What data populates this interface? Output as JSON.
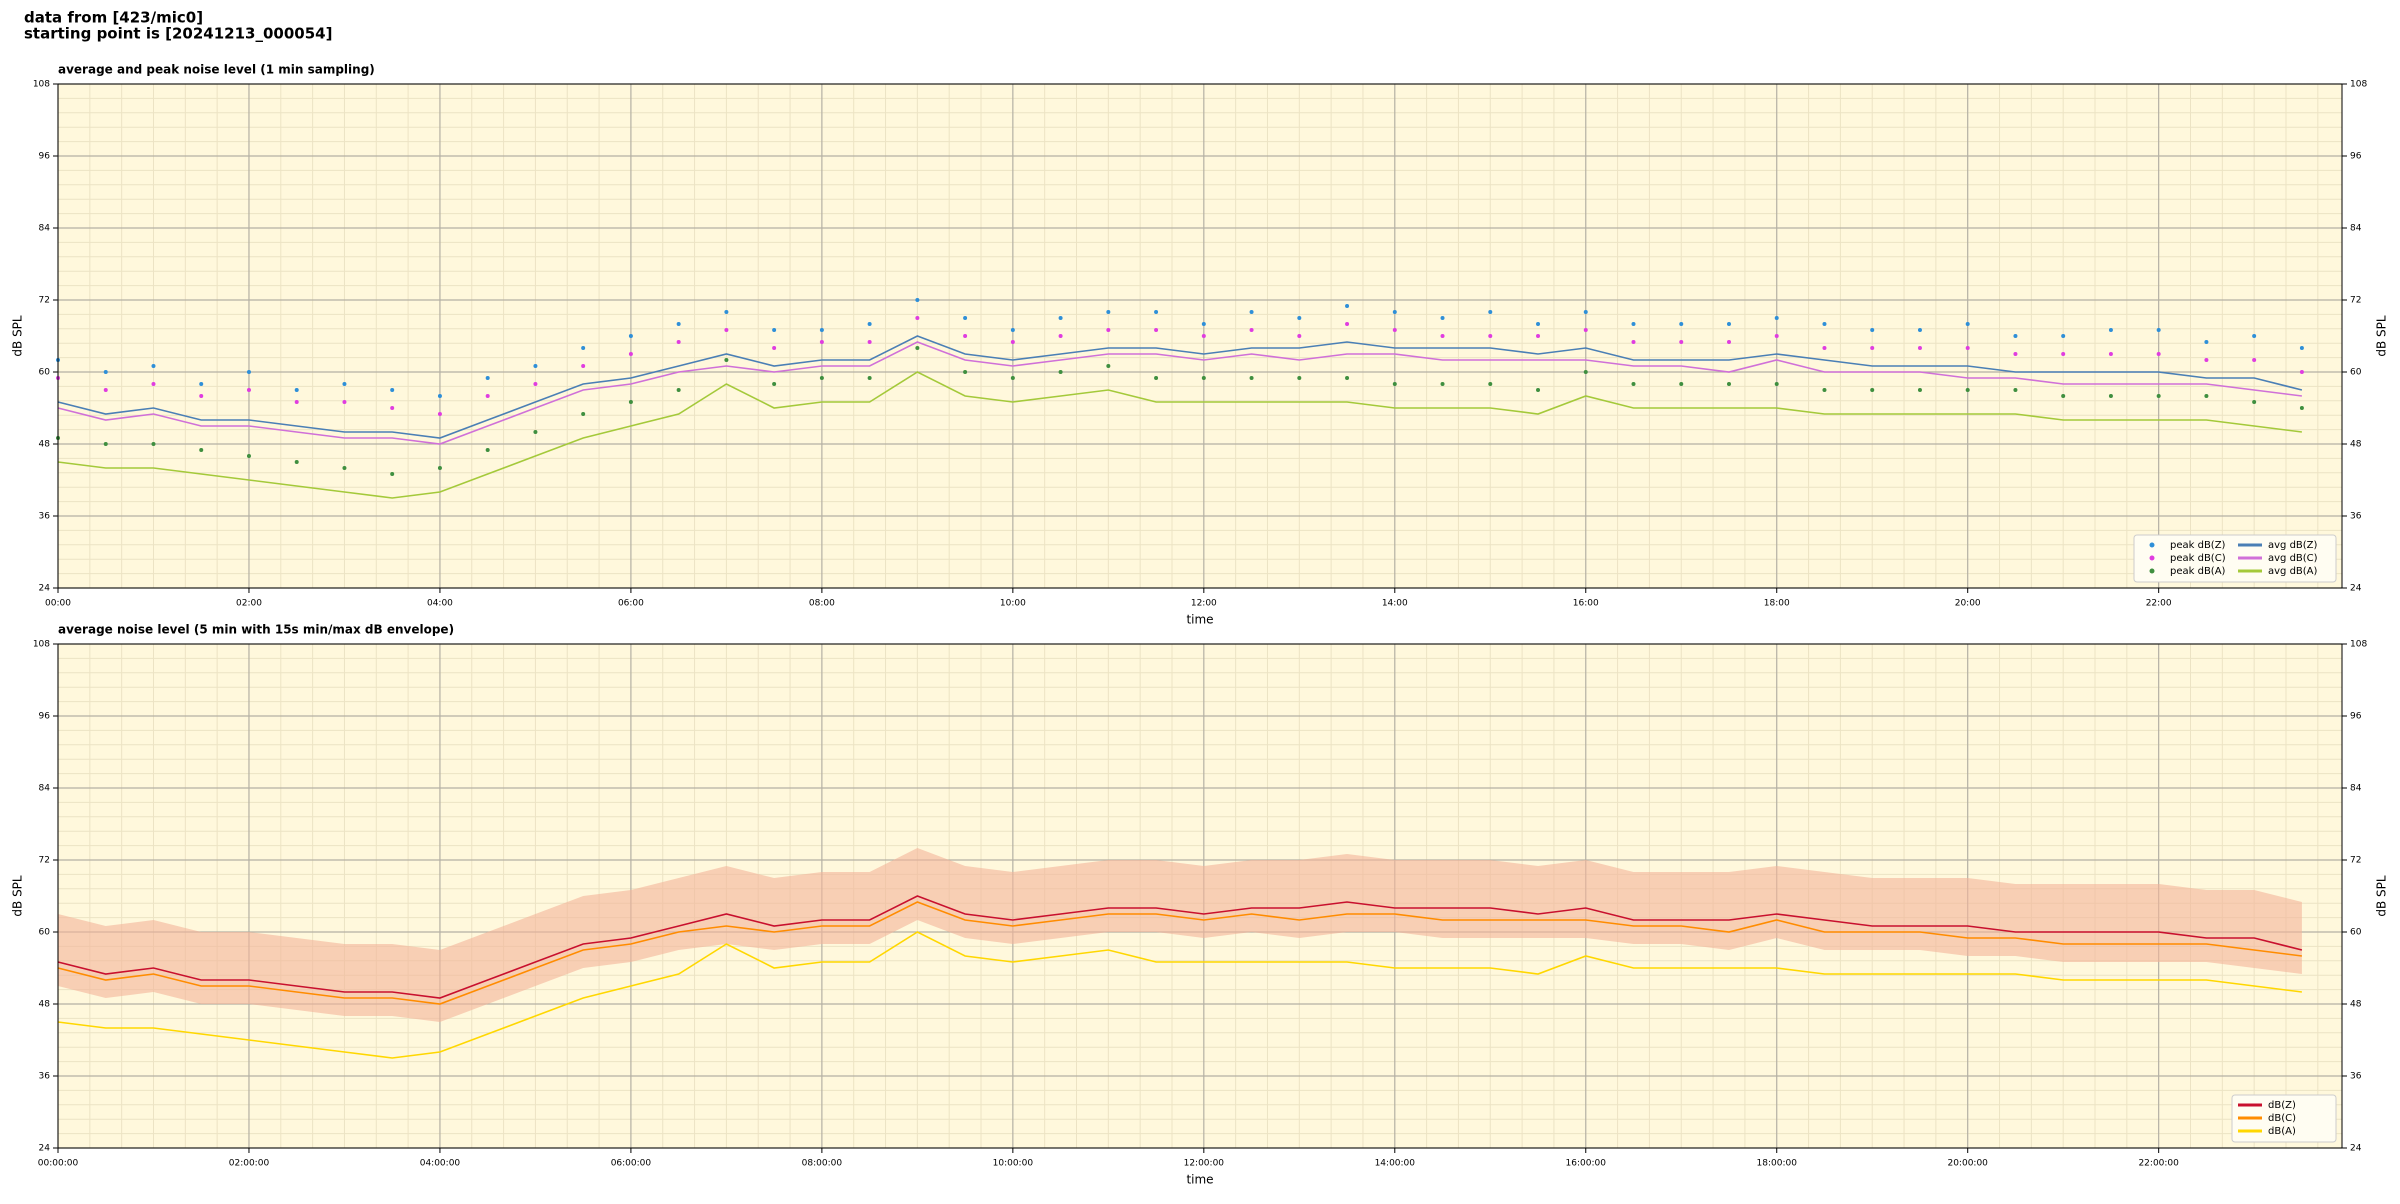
{
  "header": {
    "line1": "data from [423/mic0]",
    "line2": "starting point is [20241213_000054]"
  },
  "chart_data": [
    {
      "type": "line",
      "title": "average and peak noise level (1 min sampling)",
      "x_label": "time",
      "y_label": "dB SPL",
      "y2_label": "dB SPL",
      "x": [
        0,
        0.5,
        1,
        1.5,
        2,
        2.5,
        3,
        3.5,
        4,
        4.5,
        5,
        5.5,
        6,
        6.5,
        7,
        7.5,
        8,
        8.5,
        9,
        9.5,
        10,
        10.5,
        11,
        11.5,
        12,
        12.5,
        13,
        13.5,
        14,
        14.5,
        15,
        15.5,
        16,
        16.5,
        17,
        17.5,
        18,
        18.5,
        19,
        19.5,
        20,
        20.5,
        21,
        21.5,
        22,
        22.5,
        23,
        23.5
      ],
      "xlim": [
        0,
        23.92
      ],
      "xticks": [
        {
          "value": 0,
          "label": "00:00"
        },
        {
          "value": 2,
          "label": "02:00"
        },
        {
          "value": 4,
          "label": "04:00"
        },
        {
          "value": 6,
          "label": "06:00"
        },
        {
          "value": 8,
          "label": "08:00"
        },
        {
          "value": 10,
          "label": "10:00"
        },
        {
          "value": 12,
          "label": "12:00"
        },
        {
          "value": 14,
          "label": "14:00"
        },
        {
          "value": 16,
          "label": "16:00"
        },
        {
          "value": 18,
          "label": "18:00"
        },
        {
          "value": 20,
          "label": "20:00"
        },
        {
          "value": 22,
          "label": "22:00"
        }
      ],
      "ylim": [
        24,
        108
      ],
      "yticks": [
        24,
        36,
        48,
        60,
        72,
        84,
        96,
        108
      ],
      "y2lim": [
        24,
        108
      ],
      "y2ticks": [
        24,
        36,
        48,
        60,
        72,
        84,
        96,
        108
      ],
      "grid": true,
      "legend": "lower right",
      "legend_columns": 2,
      "series": [
        {
          "name": "peak dB(Z)",
          "style": "marker",
          "color": "#2e8fd8",
          "values": [
            62,
            60,
            61,
            58,
            60,
            57,
            58,
            57,
            56,
            59,
            61,
            64,
            66,
            68,
            70,
            67,
            67,
            68,
            72,
            69,
            67,
            69,
            70,
            70,
            68,
            70,
            69,
            71,
            70,
            69,
            70,
            68,
            70,
            68,
            68,
            68,
            69,
            68,
            67,
            67,
            68,
            66,
            66,
            67,
            67,
            65,
            66,
            64
          ]
        },
        {
          "name": "peak dB(C)",
          "style": "marker",
          "color": "#e03ce0",
          "values": [
            59,
            57,
            58,
            56,
            57,
            55,
            55,
            54,
            53,
            56,
            58,
            61,
            63,
            65,
            67,
            64,
            65,
            65,
            69,
            66,
            65,
            66,
            67,
            67,
            66,
            67,
            66,
            68,
            67,
            66,
            66,
            66,
            67,
            65,
            65,
            65,
            66,
            64,
            64,
            64,
            64,
            63,
            63,
            63,
            63,
            62,
            62,
            60
          ]
        },
        {
          "name": "peak dB(A)",
          "style": "marker",
          "color": "#3f8f3f",
          "values": [
            49,
            48,
            48,
            47,
            46,
            45,
            44,
            43,
            44,
            47,
            50,
            53,
            55,
            57,
            62,
            58,
            59,
            59,
            64,
            60,
            59,
            60,
            61,
            59,
            59,
            59,
            59,
            59,
            58,
            58,
            58,
            57,
            60,
            58,
            58,
            58,
            58,
            57,
            57,
            57,
            57,
            57,
            56,
            56,
            56,
            56,
            55,
            54
          ]
        },
        {
          "name": "avg dB(Z)",
          "style": "line",
          "color": "#4a7fb5",
          "values": [
            55,
            53,
            54,
            52,
            52,
            51,
            50,
            50,
            49,
            52,
            55,
            58,
            59,
            61,
            63,
            61,
            62,
            62,
            66,
            63,
            62,
            63,
            64,
            64,
            63,
            64,
            64,
            65,
            64,
            64,
            64,
            63,
            64,
            62,
            62,
            62,
            63,
            62,
            61,
            61,
            61,
            60,
            60,
            60,
            60,
            59,
            59,
            57
          ]
        },
        {
          "name": "avg dB(C)",
          "style": "line",
          "color": "#d070d8",
          "values": [
            54,
            52,
            53,
            51,
            51,
            50,
            49,
            49,
            48,
            51,
            54,
            57,
            58,
            60,
            61,
            60,
            61,
            61,
            65,
            62,
            61,
            62,
            63,
            63,
            62,
            63,
            62,
            63,
            63,
            62,
            62,
            62,
            62,
            61,
            61,
            60,
            62,
            60,
            60,
            60,
            59,
            59,
            58,
            58,
            58,
            58,
            57,
            56
          ]
        },
        {
          "name": "avg dB(A)",
          "style": "line",
          "color": "#a4c93a",
          "values": [
            45,
            44,
            44,
            43,
            42,
            41,
            40,
            39,
            40,
            43,
            46,
            49,
            51,
            53,
            58,
            54,
            55,
            55,
            60,
            56,
            55,
            56,
            57,
            55,
            55,
            55,
            55,
            55,
            54,
            54,
            54,
            53,
            56,
            54,
            54,
            54,
            54,
            53,
            53,
            53,
            53,
            53,
            52,
            52,
            52,
            52,
            51,
            50
          ]
        }
      ]
    },
    {
      "type": "line",
      "title": "average noise level (5 min with 15s min/max dB envelope)",
      "x_label": "time",
      "y_label": "dB SPL",
      "y2_label": "dB SPL",
      "x": [
        0,
        0.5,
        1,
        1.5,
        2,
        2.5,
        3,
        3.5,
        4,
        4.5,
        5,
        5.5,
        6,
        6.5,
        7,
        7.5,
        8,
        8.5,
        9,
        9.5,
        10,
        10.5,
        11,
        11.5,
        12,
        12.5,
        13,
        13.5,
        14,
        14.5,
        15,
        15.5,
        16,
        16.5,
        17,
        17.5,
        18,
        18.5,
        19,
        19.5,
        20,
        20.5,
        21,
        21.5,
        22,
        22.5,
        23,
        23.5
      ],
      "xlim": [
        0,
        23.92
      ],
      "xticks": [
        {
          "value": 0,
          "label": "00:00:00"
        },
        {
          "value": 2,
          "label": "02:00:00"
        },
        {
          "value": 4,
          "label": "04:00:00"
        },
        {
          "value": 6,
          "label": "06:00:00"
        },
        {
          "value": 8,
          "label": "08:00:00"
        },
        {
          "value": 10,
          "label": "10:00:00"
        },
        {
          "value": 12,
          "label": "12:00:00"
        },
        {
          "value": 14,
          "label": "14:00:00"
        },
        {
          "value": 16,
          "label": "16:00:00"
        },
        {
          "value": 18,
          "label": "18:00:00"
        },
        {
          "value": 20,
          "label": "20:00:00"
        },
        {
          "value": 22,
          "label": "22:00:00"
        }
      ],
      "ylim": [
        24,
        108
      ],
      "yticks": [
        24,
        36,
        48,
        60,
        72,
        84,
        96,
        108
      ],
      "y2lim": [
        24,
        108
      ],
      "y2ticks": [
        24,
        36,
        48,
        60,
        72,
        84,
        96,
        108
      ],
      "grid": true,
      "legend": "lower right",
      "legend_columns": 1,
      "envelope": {
        "color": "#f4b49a",
        "min": [
          51,
          49,
          50,
          48,
          48,
          47,
          46,
          46,
          45,
          48,
          51,
          54,
          55,
          57,
          58,
          57,
          58,
          58,
          62,
          59,
          58,
          59,
          60,
          60,
          59,
          60,
          59,
          60,
          60,
          59,
          59,
          59,
          59,
          58,
          58,
          57,
          59,
          57,
          57,
          57,
          56,
          56,
          55,
          55,
          55,
          55,
          54,
          53
        ],
        "max": [
          63,
          61,
          62,
          60,
          60,
          59,
          58,
          58,
          57,
          60,
          63,
          66,
          67,
          69,
          71,
          69,
          70,
          70,
          74,
          71,
          70,
          71,
          72,
          72,
          71,
          72,
          72,
          73,
          72,
          72,
          72,
          71,
          72,
          70,
          70,
          70,
          71,
          70,
          69,
          69,
          69,
          68,
          68,
          68,
          68,
          67,
          67,
          65
        ]
      },
      "series": [
        {
          "name": "dB(Z)",
          "style": "line",
          "color": "#c8102e",
          "values": [
            55,
            53,
            54,
            52,
            52,
            51,
            50,
            50,
            49,
            52,
            55,
            58,
            59,
            61,
            63,
            61,
            62,
            62,
            66,
            63,
            62,
            63,
            64,
            64,
            63,
            64,
            64,
            65,
            64,
            64,
            64,
            63,
            64,
            62,
            62,
            62,
            63,
            62,
            61,
            61,
            61,
            60,
            60,
            60,
            60,
            59,
            59,
            57
          ]
        },
        {
          "name": "dB(C)",
          "style": "line",
          "color": "#ff8c00",
          "values": [
            54,
            52,
            53,
            51,
            51,
            50,
            49,
            49,
            48,
            51,
            54,
            57,
            58,
            60,
            61,
            60,
            61,
            61,
            65,
            62,
            61,
            62,
            63,
            63,
            62,
            63,
            62,
            63,
            63,
            62,
            62,
            62,
            62,
            61,
            61,
            60,
            62,
            60,
            60,
            60,
            59,
            59,
            58,
            58,
            58,
            58,
            57,
            56
          ]
        },
        {
          "name": "dB(A)",
          "style": "line",
          "color": "#ffd700",
          "values": [
            45,
            44,
            44,
            43,
            42,
            41,
            40,
            39,
            40,
            43,
            46,
            49,
            51,
            53,
            58,
            54,
            55,
            55,
            60,
            56,
            55,
            56,
            57,
            55,
            55,
            55,
            55,
            55,
            54,
            54,
            54,
            53,
            56,
            54,
            54,
            54,
            54,
            53,
            53,
            53,
            53,
            53,
            52,
            52,
            52,
            52,
            51,
            50
          ]
        }
      ]
    }
  ]
}
